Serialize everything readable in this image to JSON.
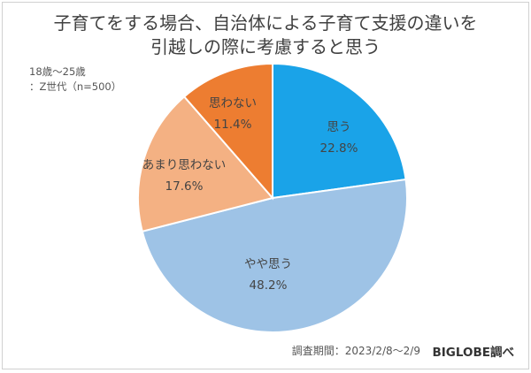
{
  "chart_data": {
    "type": "pie",
    "title_line1": "子育てをする場合、自治体による子育て支援の違いを",
    "title_line2": "引越しの際に考慮すると思う",
    "subtitle_line1": "18歳〜25歳",
    "subtitle_line2": "：Z世代（n=500）",
    "slices": [
      {
        "label": "思う",
        "value": 22.8,
        "value_label": "22.8%",
        "color": "#1aa3e8"
      },
      {
        "label": "やや思う",
        "value": 48.2,
        "value_label": "48.2%",
        "color": "#9ec3e6"
      },
      {
        "label": "あまり思わない",
        "value": 17.6,
        "value_label": "17.6%",
        "color": "#f4b183"
      },
      {
        "label": "思わない",
        "value": 11.4,
        "value_label": "11.4%",
        "color": "#ed7d31"
      }
    ],
    "start_angle_deg": 0,
    "direction": "clockwise",
    "legend": "none",
    "footer": {
      "period": "調査期間：2023/2/8〜2/9",
      "source": "BIGLOBE調べ"
    }
  }
}
